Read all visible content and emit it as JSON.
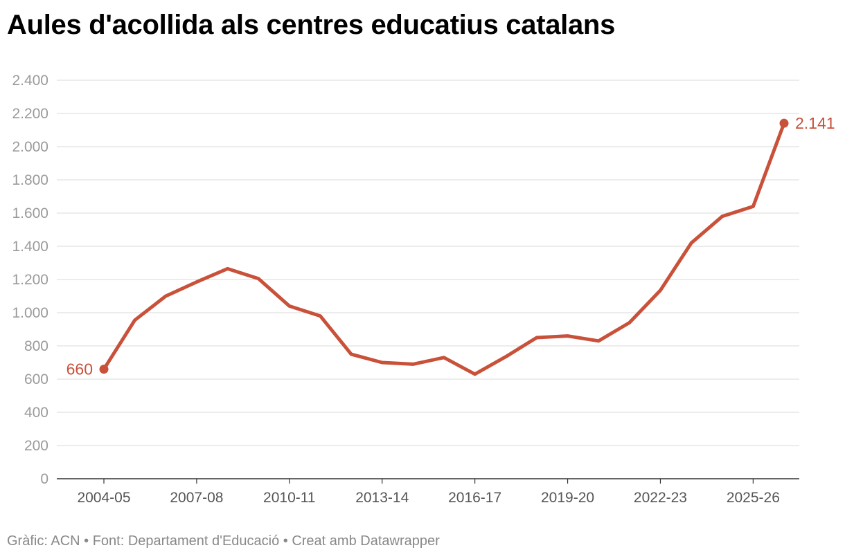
{
  "title": "Aules d'acollida als centres educatius catalans",
  "footer": {
    "text": "Gràfic: ACN • Font: Departament d'Educació • Creat amb Datawrapper"
  },
  "chart_data": {
    "type": "line",
    "title": "Aules d'acollida als centres educatius catalans",
    "xlabel": "",
    "ylabel": "",
    "x": [
      "2004-05",
      "2005-06",
      "2006-07",
      "2007-08",
      "2008-09",
      "2009-10",
      "2010-11",
      "2011-12",
      "2012-13",
      "2013-14",
      "2014-15",
      "2015-16",
      "2016-17",
      "2017-18",
      "2018-19",
      "2019-20",
      "2020-21",
      "2021-22",
      "2022-23",
      "2023-24",
      "2024-25",
      "2025-26",
      "2026-27"
    ],
    "x_tick_labels": [
      "2004-05",
      "2007-08",
      "2010-11",
      "2013-14",
      "2016-17",
      "2019-20",
      "2022-23",
      "2025-26"
    ],
    "series": [
      {
        "color": "#c9513a",
        "values": [
          660,
          955,
          1100,
          1185,
          1265,
          1205,
          1040,
          980,
          750,
          700,
          690,
          730,
          630,
          735,
          850,
          860,
          830,
          940,
          1135,
          1420,
          1580,
          1640,
          2141
        ]
      }
    ],
    "ylim": [
      0,
      2400
    ],
    "y_ticks": [
      0,
      200,
      400,
      600,
      800,
      1000,
      1200,
      1400,
      1600,
      1800,
      2000,
      2200,
      2400
    ],
    "y_tick_labels": [
      "0",
      "200",
      "400",
      "600",
      "800",
      "1.000",
      "1.200",
      "1.400",
      "1.600",
      "1.800",
      "2.000",
      "2.200",
      "2.400"
    ],
    "annotations": [
      {
        "index": 0,
        "label": "660",
        "position": "left"
      },
      {
        "index": 22,
        "label": "2.141",
        "position": "right"
      }
    ],
    "grid": true,
    "legend": "none"
  },
  "colors": {
    "line": "#c9513a",
    "grid": "#e0e0e0",
    "axis": "#333333",
    "tick_text": "#9a9a9a",
    "xtick_text": "#555555",
    "footer_text": "#888888"
  }
}
